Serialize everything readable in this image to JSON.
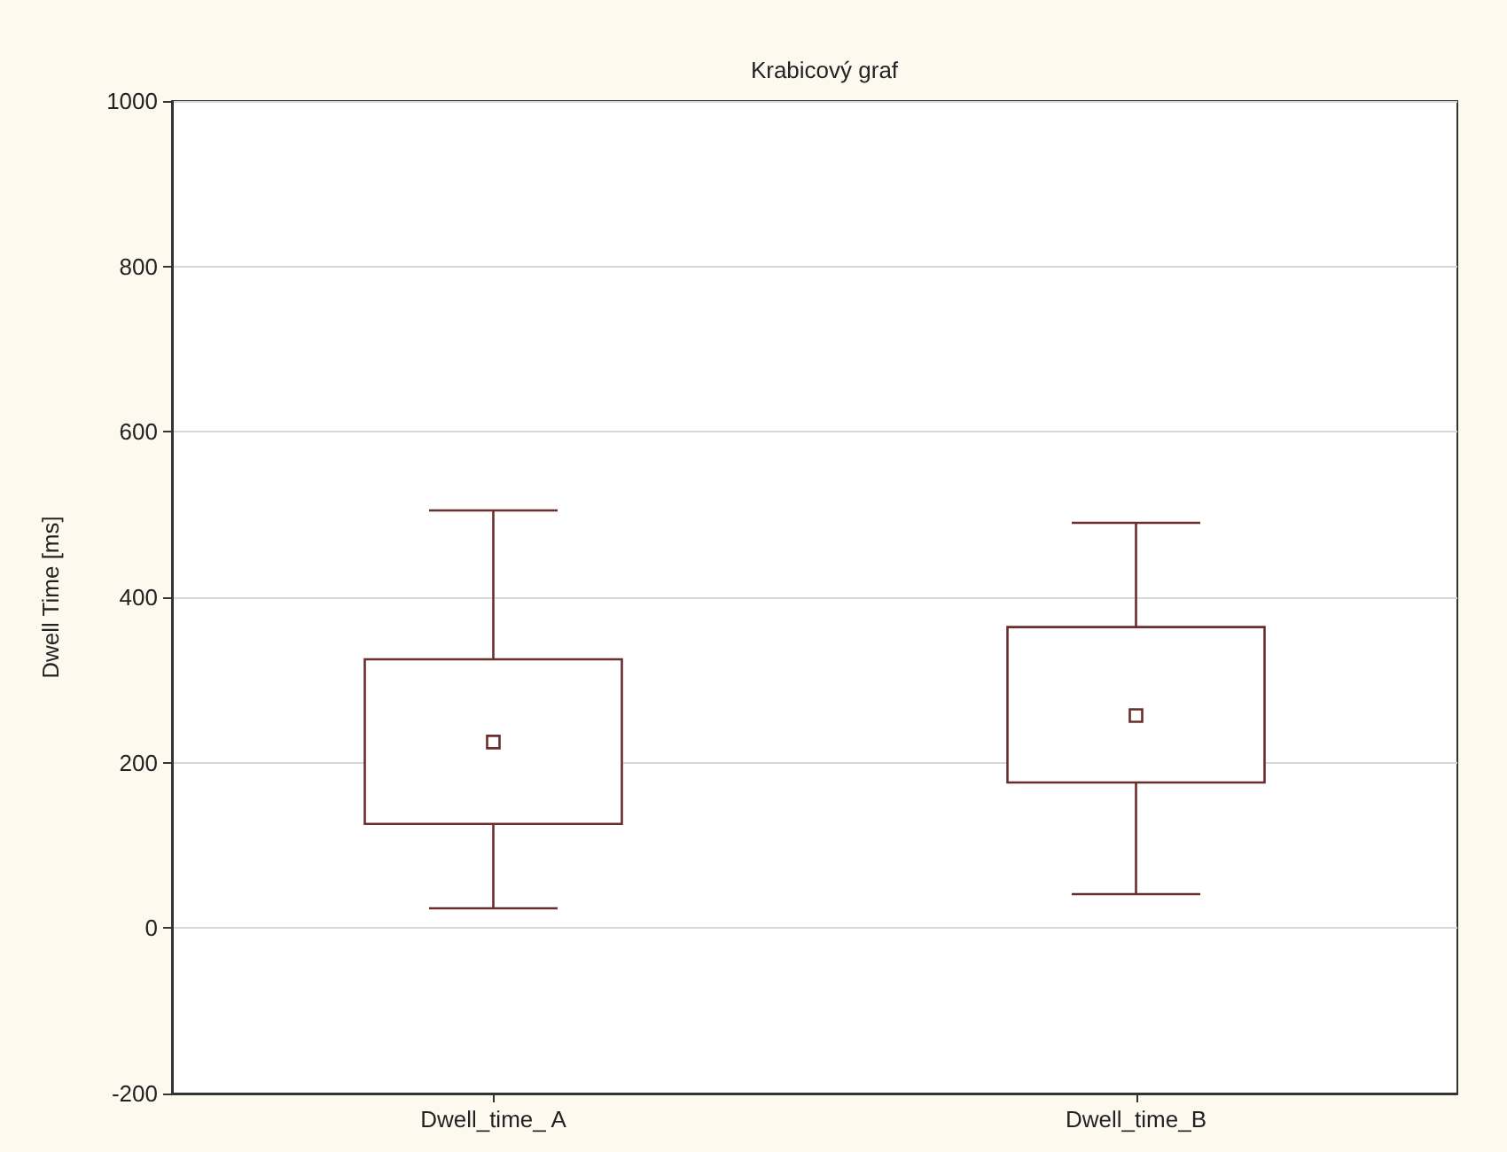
{
  "chart_data": {
    "type": "box",
    "title": "Krabicový graf",
    "ylabel": "Dwell Time [ms]",
    "categories": [
      "Dwell_time_ A",
      "Dwell_time_B"
    ],
    "boxes": [
      {
        "low": 24,
        "q1": 126,
        "median": 225,
        "q3": 325,
        "high": 505
      },
      {
        "low": 41,
        "q1": 176,
        "median": 257,
        "q3": 364,
        "high": 490
      }
    ],
    "color": "#6b2c2c",
    "ylim": [
      -200,
      1000
    ],
    "yticks": [
      -200,
      0,
      200,
      400,
      600,
      800,
      1000
    ],
    "grid": "y"
  }
}
